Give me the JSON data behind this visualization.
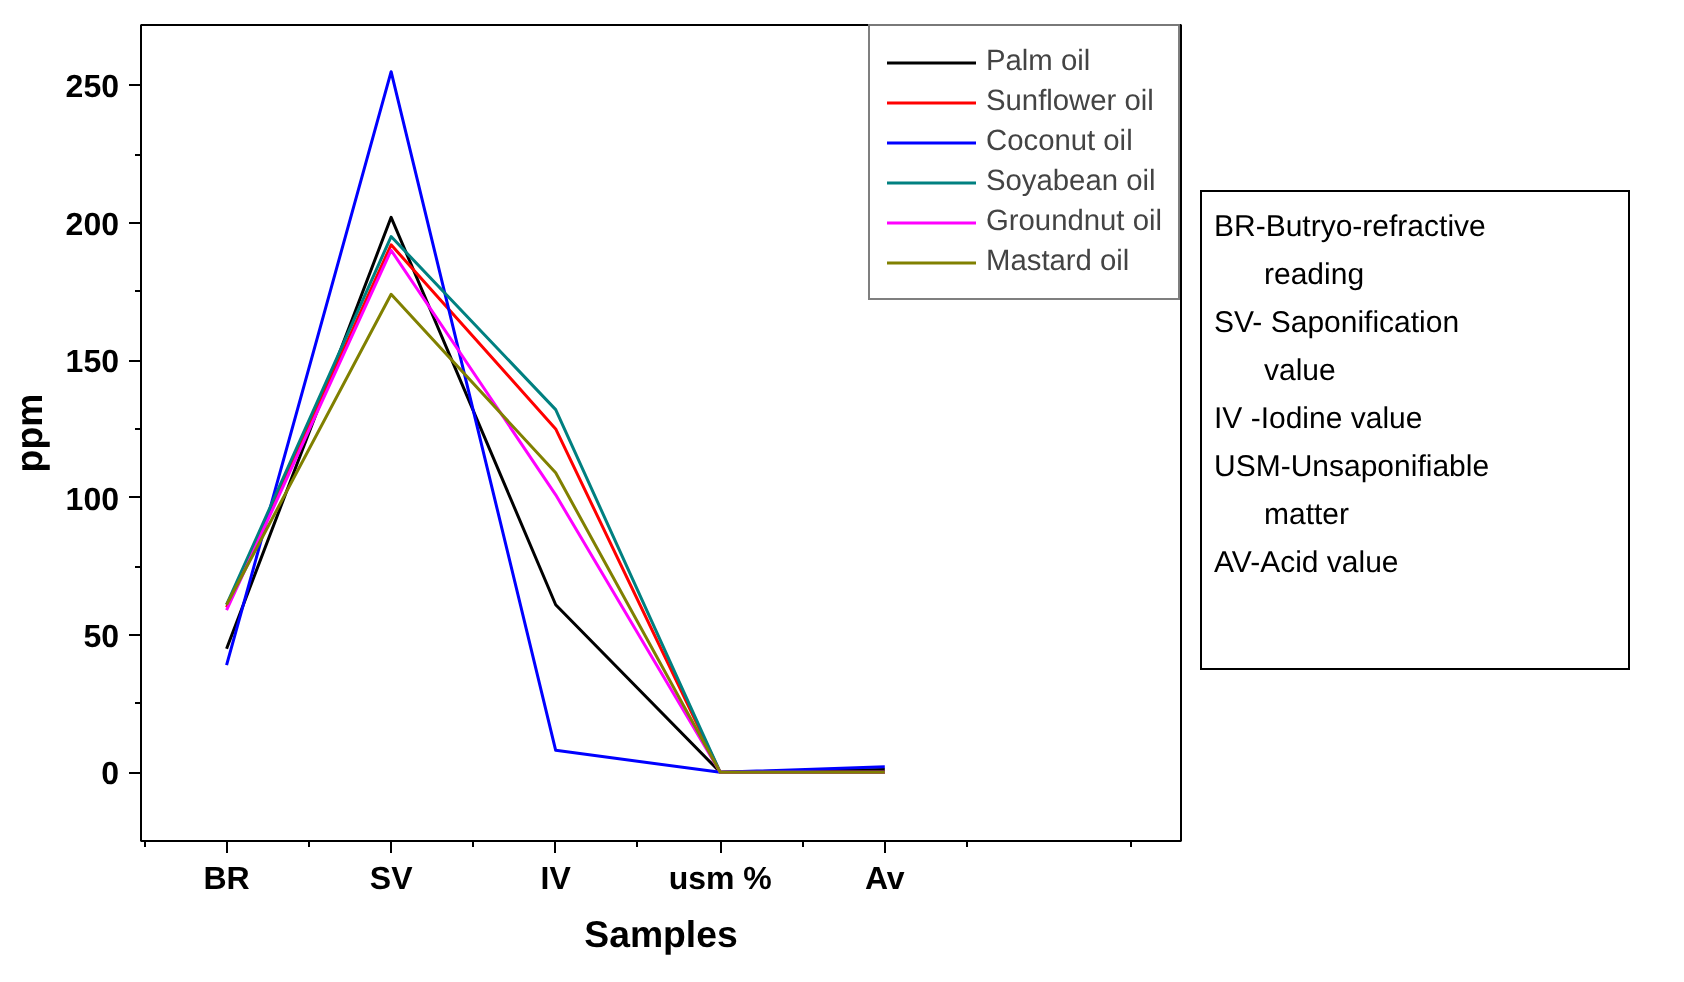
{
  "chart_data": {
    "type": "line",
    "xlabel": "Samples",
    "ylabel": "ppm",
    "categories": [
      "BR",
      "SV",
      "IV",
      "usm %",
      "Av"
    ],
    "series": [
      {
        "name": "Palm oil",
        "color": "#000000",
        "values": [
          45,
          202,
          61,
          0,
          1
        ]
      },
      {
        "name": "Sunflower oil",
        "color": "#ff0000",
        "values": [
          60,
          192,
          125,
          0,
          0
        ]
      },
      {
        "name": "Coconut oil",
        "color": "#0000ff",
        "values": [
          39,
          255,
          8,
          0,
          2
        ]
      },
      {
        "name": "Soyabean oil",
        "color": "#008080",
        "values": [
          61,
          195,
          132,
          0,
          0
        ]
      },
      {
        "name": "Groundnut oil",
        "color": "#ff00ff",
        "values": [
          59,
          190,
          101,
          0,
          0
        ]
      },
      {
        "name": "Mastard oil",
        "color": "#808000",
        "values": [
          61,
          174,
          109,
          0,
          0
        ]
      }
    ],
    "ylim": [
      -25,
      272
    ],
    "yticks": [
      0,
      50,
      100,
      150,
      200,
      250
    ],
    "grid": false,
    "legend": "top right",
    "marker": "none",
    "line_style": "solid",
    "annotations": [
      "BR-Butryo-refractive\nreading",
      "SV- Saponification\nvalue",
      "IV -Iodine value",
      "USM-Unsaponifiable\nmatter",
      "AV-Acid value"
    ]
  }
}
